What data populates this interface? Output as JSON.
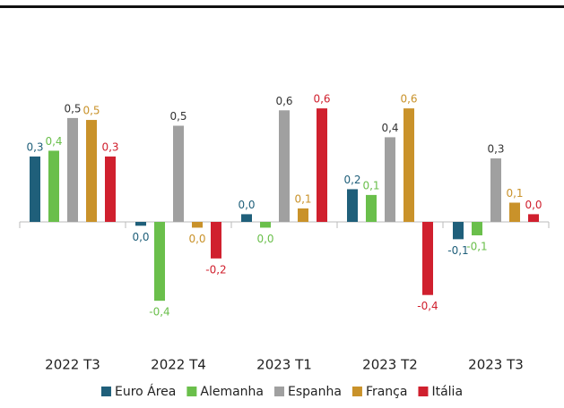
{
  "chart_data": {
    "type": "bar",
    "categories": [
      "2022 T3",
      "2022 T4",
      "2023 T1",
      "2023 T2",
      "2023 T3"
    ],
    "ylim": [
      -0.6,
      0.8
    ],
    "series": [
      {
        "name": "Euro Área",
        "color": "#1f5f7a",
        "values": [
          0.34,
          -0.02,
          0.04,
          0.17,
          -0.09
        ],
        "value_labels": [
          "0,3",
          "0,0",
          "0,0",
          "0,2",
          "-0,1"
        ]
      },
      {
        "name": "Alemanha",
        "color": "#6abf4b",
        "values": [
          0.37,
          -0.41,
          -0.03,
          0.14,
          -0.07
        ],
        "value_labels": [
          "0,4",
          "-0,4",
          "0,0",
          "0,1",
          "-0,1"
        ]
      },
      {
        "name": "Espanha",
        "color": "#a0a0a0",
        "values": [
          0.54,
          0.5,
          0.58,
          0.44,
          0.33
        ],
        "value_labels": [
          "0,5",
          "0,5",
          "0,6",
          "0,4",
          "0,3"
        ]
      },
      {
        "name": "França",
        "color": "#c9922a",
        "values": [
          0.53,
          -0.03,
          0.07,
          0.59,
          0.1
        ],
        "value_labels": [
          "0,5",
          "0,0",
          "0,1",
          "0,6",
          "0,1"
        ]
      },
      {
        "name": "Itália",
        "color": "#d0202e",
        "values": [
          0.34,
          -0.19,
          0.59,
          -0.38,
          0.04
        ],
        "value_labels": [
          "0,3",
          "-0,2",
          "0,6",
          "-0,4",
          "0,0"
        ]
      }
    ]
  }
}
